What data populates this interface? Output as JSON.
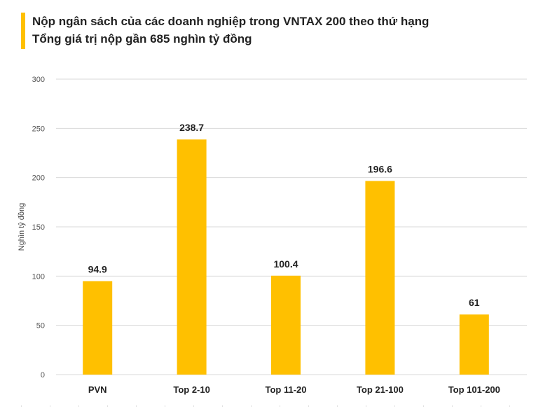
{
  "chart_data": {
    "type": "bar",
    "title": "Nộp ngân sách của các doanh nghiệp trong VNTAX 200 theo thứ hạng",
    "subtitle": "Tổng giá trị nộp gần 685 nghìn tỷ đồng",
    "ylabel": "Nghìn tỷ đồng",
    "xlabel": "",
    "ylim": [
      0,
      300
    ],
    "yticks": [
      0,
      50,
      100,
      150,
      200,
      250,
      300
    ],
    "grid": true,
    "legend": "none",
    "categories": [
      "PVN",
      "Top 2-10",
      "Top 11-20",
      "Top 21-100",
      "Top 101-200"
    ],
    "values": [
      94.9,
      238.7,
      100.4,
      196.6,
      61
    ],
    "value_labels": [
      "94.9",
      "238.7",
      "100.4",
      "196.6",
      "61"
    ],
    "bar_color": "#ffc000"
  }
}
